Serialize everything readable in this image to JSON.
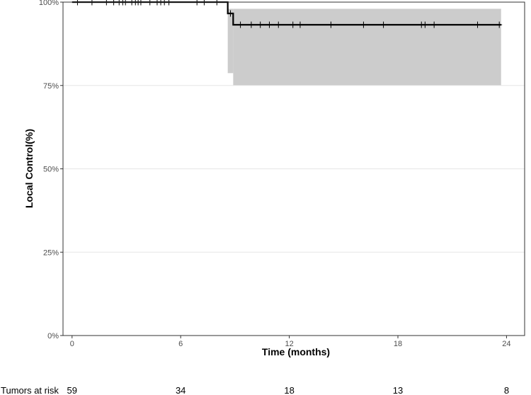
{
  "chart_data": {
    "type": "line",
    "title": "",
    "xlabel": "Time (months)",
    "ylabel": "Local Control(%)",
    "xlim": [
      -0.5,
      25
    ],
    "ylim": [
      0,
      1
    ],
    "x_ticks": [
      0,
      6,
      12,
      18,
      24
    ],
    "x_tick_labels": [
      "0",
      "6",
      "12",
      "18",
      "24"
    ],
    "y_ticks": [
      0,
      0.25,
      0.5,
      0.75,
      1.0
    ],
    "y_tick_labels": [
      "0%",
      "25%",
      "50%",
      "75%",
      "100%"
    ],
    "grid": true,
    "series": [
      {
        "steps": [
          {
            "x": 0,
            "y": 1.0
          },
          {
            "x": 8.6,
            "y": 0.966
          },
          {
            "x": 8.9,
            "y": 0.932
          }
        ],
        "end_x": 23.7,
        "color": "#000000",
        "confidence_band": [
          {
            "x_start": 8.6,
            "x_end": 8.9,
            "lower": 0.787,
            "upper": 0.98
          },
          {
            "x_start": 8.9,
            "x_end": 23.7,
            "lower": 0.75,
            "upper": 0.98
          }
        ],
        "band_color": "#cccccc",
        "censor_marks": [
          {
            "x": 0.3,
            "y": 1.0
          },
          {
            "x": 1.1,
            "y": 1.0
          },
          {
            "x": 1.9,
            "y": 1.0
          },
          {
            "x": 2.3,
            "y": 1.0
          },
          {
            "x": 2.6,
            "y": 1.0
          },
          {
            "x": 2.8,
            "y": 1.0
          },
          {
            "x": 2.95,
            "y": 1.0
          },
          {
            "x": 3.3,
            "y": 1.0
          },
          {
            "x": 3.5,
            "y": 1.0
          },
          {
            "x": 3.65,
            "y": 1.0
          },
          {
            "x": 3.8,
            "y": 1.0
          },
          {
            "x": 4.3,
            "y": 1.0
          },
          {
            "x": 4.7,
            "y": 1.0
          },
          {
            "x": 4.9,
            "y": 1.0
          },
          {
            "x": 5.1,
            "y": 1.0
          },
          {
            "x": 5.35,
            "y": 1.0
          },
          {
            "x": 6.9,
            "y": 1.0
          },
          {
            "x": 7.3,
            "y": 1.0
          },
          {
            "x": 8.0,
            "y": 1.0
          },
          {
            "x": 8.75,
            "y": 0.966
          },
          {
            "x": 9.3,
            "y": 0.932
          },
          {
            "x": 9.9,
            "y": 0.932
          },
          {
            "x": 10.4,
            "y": 0.932
          },
          {
            "x": 10.9,
            "y": 0.932
          },
          {
            "x": 11.4,
            "y": 0.932
          },
          {
            "x": 12.2,
            "y": 0.932
          },
          {
            "x": 12.6,
            "y": 0.932
          },
          {
            "x": 14.3,
            "y": 0.932
          },
          {
            "x": 16.1,
            "y": 0.932
          },
          {
            "x": 17.2,
            "y": 0.932
          },
          {
            "x": 19.3,
            "y": 0.932
          },
          {
            "x": 19.5,
            "y": 0.932
          },
          {
            "x": 20.0,
            "y": 0.932
          },
          {
            "x": 22.4,
            "y": 0.932
          },
          {
            "x": 23.6,
            "y": 0.932
          }
        ]
      }
    ],
    "risk_table": {
      "label": "Tumors at risk",
      "times": [
        0,
        6,
        12,
        18,
        24
      ],
      "counts": [
        "59",
        "34",
        "18",
        "13",
        "8"
      ]
    }
  }
}
